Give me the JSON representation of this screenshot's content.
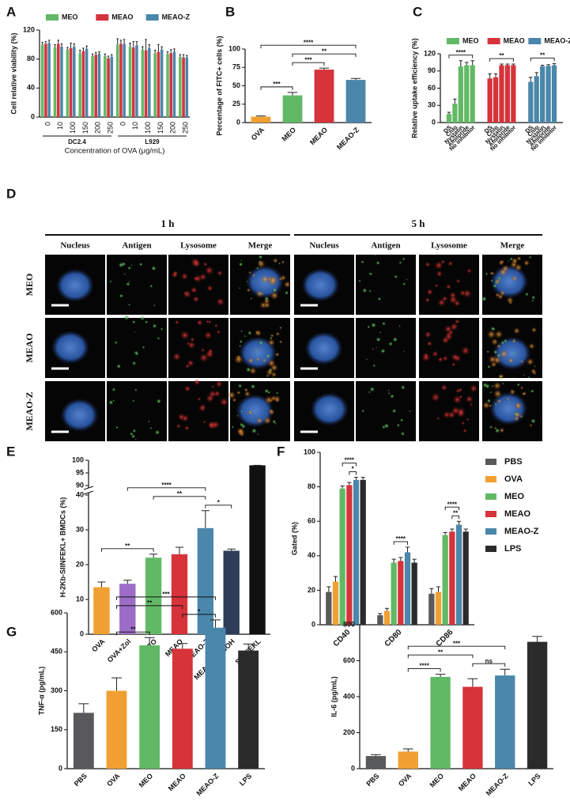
{
  "chart_data": [
    {
      "type": "grouped_bar",
      "panel": "A",
      "ylabel": "Cell relative viability (%)",
      "xlabel": "Concentration of OVA (μg/mL)",
      "categories": [
        "0",
        "10",
        "100",
        "150",
        "200",
        "250",
        "0",
        "10",
        "100",
        "150",
        "200",
        "250"
      ],
      "x_groups": [
        "DC2.4",
        "L929"
      ],
      "legend": "top",
      "ylim": [
        0,
        120
      ],
      "yticks": [
        0,
        40,
        80,
        120
      ],
      "series": [
        {
          "name": "MEO",
          "color": "#62b965",
          "values": [
            100,
            96,
            93,
            88,
            84,
            84,
            100,
            97,
            93,
            88,
            87,
            83
          ],
          "errors": [
            3,
            4,
            3,
            4,
            3,
            3,
            8,
            5,
            4,
            4,
            3,
            3
          ]
        },
        {
          "name": "MEAO",
          "color": "#d6333b",
          "values": [
            101,
            101,
            95,
            91,
            86,
            81,
            101,
            96,
            92,
            90,
            88,
            82
          ],
          "errors": [
            3,
            5,
            7,
            4,
            3,
            3,
            5,
            8,
            15,
            10,
            5,
            4
          ]
        },
        {
          "name": "MEAO-Z",
          "color": "#4a87aa",
          "values": [
            102,
            97,
            97,
            94,
            87,
            83,
            101,
            99,
            95,
            93,
            90,
            82
          ],
          "errors": [
            4,
            4,
            4,
            4,
            3,
            3,
            6,
            5,
            5,
            4,
            4,
            3
          ]
        }
      ]
    },
    {
      "type": "bar",
      "panel": "B",
      "ylabel": "Percentage of FITC+ cells (%)",
      "categories": [
        "OVA",
        "MEO",
        "MEAO",
        "MEAO-Z"
      ],
      "values": [
        8,
        37,
        72,
        58
      ],
      "errors": [
        1,
        4,
        2,
        2
      ],
      "colors": [
        "#f0a032",
        "#62b965",
        "#d6333b",
        "#4a87aa"
      ],
      "ylim": [
        0,
        100
      ],
      "yticks": [
        0,
        25,
        50,
        75,
        100
      ],
      "comparisons": [
        {
          "groups": [
            "OVA",
            "MEO"
          ],
          "label": "***"
        },
        {
          "groups": [
            "MEO",
            "MEAO"
          ],
          "label": "***"
        },
        {
          "groups": [
            "MEO",
            "MEAO-Z"
          ],
          "label": "**"
        },
        {
          "groups": [
            "OVA",
            "MEAO-Z"
          ],
          "label": "****"
        }
      ]
    },
    {
      "type": "grouped_bar",
      "panel": "C",
      "ylabel": "Relative uptake efficiency (%)",
      "cluster": "series",
      "legend": "top",
      "categories": [
        "DS",
        "Chlo",
        "Nystatin",
        "Amiloride",
        "No inhibitor"
      ],
      "ylim": [
        0,
        120
      ],
      "yticks": [
        0,
        30,
        60,
        90,
        120
      ],
      "series": [
        {
          "name": "MEO",
          "color": "#62b965",
          "values": [
            15,
            33,
            98,
            100,
            100
          ],
          "errors": [
            3,
            8,
            10,
            5,
            8
          ]
        },
        {
          "name": "MEAO",
          "color": "#d6333b",
          "values": [
            77,
            79,
            100,
            100,
            100
          ],
          "errors": [
            8,
            6,
            2,
            2,
            2
          ]
        },
        {
          "name": "MEAO-Z",
          "color": "#4a87aa",
          "values": [
            71,
            81,
            98,
            99,
            100
          ],
          "errors": [
            8,
            6,
            2,
            2,
            3
          ]
        }
      ],
      "comparisons": [
        {
          "series": "MEO",
          "groups": [
            "DS",
            "No inhibitor"
          ],
          "label": "****"
        },
        {
          "series": "MEAO",
          "groups": [
            "DS",
            "No inhibitor"
          ],
          "label": "**"
        },
        {
          "series": "MEAO-Z",
          "groups": [
            "DS",
            "No inhibitor"
          ],
          "label": "**"
        }
      ]
    },
    {
      "type": "bar",
      "panel": "E",
      "ylabel": "H-2Kb-SIINFEKL+ BMDCs (%)",
      "categories": [
        "OVA",
        "OVA+Zol",
        "MEO",
        "MEAO",
        "MEAO-Z",
        "MEAO-Z+GGOH",
        "SIINFEKL"
      ],
      "values": [
        13.5,
        14.5,
        22,
        23,
        30.5,
        24,
        98
      ],
      "errors": [
        1.5,
        1,
        1,
        2,
        5,
        0.5,
        0
      ],
      "colors": [
        "#f0a032",
        "#9b6dc6",
        "#62b965",
        "#d6333b",
        "#4a87aa",
        "#2e3e58",
        "#111111"
      ],
      "ylim": [
        0,
        100
      ],
      "ybreak": [
        40,
        90
      ],
      "yticks": [
        0,
        10,
        20,
        30,
        40,
        90,
        95,
        100
      ],
      "comparisons": [
        {
          "groups": [
            "OVA",
            "MEO"
          ],
          "label": "**"
        },
        {
          "groups": [
            "MEAO-Z",
            "MEAO-Z+GGOH"
          ],
          "label": "*"
        },
        {
          "groups": [
            "MEO",
            "MEAO-Z"
          ],
          "label": "**"
        },
        {
          "groups": [
            "OVA+Zol",
            "MEAO-Z"
          ],
          "label": "****"
        }
      ]
    },
    {
      "type": "grouped_bar",
      "panel": "F",
      "ylabel": "Gated (%)",
      "legend": "right",
      "categories": [
        "CD40",
        "CD80",
        "CD86"
      ],
      "ylim": [
        0,
        100
      ],
      "yticks": [
        0,
        20,
        40,
        60,
        80,
        100
      ],
      "series": [
        {
          "name": "PBS",
          "color": "#58595b",
          "values": [
            19,
            5.5,
            18
          ],
          "errors": [
            3,
            1,
            3
          ]
        },
        {
          "name": "OVA",
          "color": "#f0a032",
          "values": [
            25,
            8,
            19
          ],
          "errors": [
            3,
            1.5,
            3
          ]
        },
        {
          "name": "MEO",
          "color": "#62b965",
          "values": [
            79,
            36,
            52
          ],
          "errors": [
            1.5,
            2,
            1.5
          ]
        },
        {
          "name": "MEAO",
          "color": "#d6333b",
          "values": [
            81,
            37,
            54
          ],
          "errors": [
            1.5,
            2,
            1.5
          ]
        },
        {
          "name": "MEAO-Z",
          "color": "#4a87aa",
          "values": [
            84,
            42,
            58
          ],
          "errors": [
            1.5,
            3,
            2
          ]
        },
        {
          "name": "LPS",
          "color": "#2b2b2b",
          "values": [
            84,
            36,
            54
          ],
          "errors": [
            1.5,
            2,
            1.5
          ]
        }
      ],
      "comparisons": [
        {
          "category": "CD40",
          "groups": [
            "MEAO",
            "MEAO-Z"
          ],
          "label": "*"
        },
        {
          "category": "CD40",
          "groups": [
            "MEO",
            "MEAO-Z"
          ],
          "label": "****"
        },
        {
          "category": "CD80",
          "groups": [
            "MEO",
            "MEAO-Z"
          ],
          "label": "****"
        },
        {
          "category": "CD86",
          "groups": [
            "MEAO",
            "MEAO-Z"
          ],
          "label": "**"
        },
        {
          "category": "CD86",
          "groups": [
            "MEO",
            "MEAO-Z"
          ],
          "label": "****"
        }
      ]
    },
    {
      "type": "bar",
      "panel": "G",
      "ylabel": "TNF-α (pg/mL)",
      "categories": [
        "PBS",
        "OVA",
        "MEO",
        "MEAO",
        "MEAO-Z",
        "LPS"
      ],
      "values": [
        215,
        300,
        475,
        462,
        543,
        455
      ],
      "errors": [
        35,
        50,
        30,
        20,
        30,
        25
      ],
      "colors": [
        "#58595b",
        "#f0a032",
        "#62b965",
        "#d6333b",
        "#4a87aa",
        "#2b2b2b"
      ],
      "ylim": [
        0,
        600
      ],
      "yticks": [
        0,
        150,
        300,
        450,
        600
      ],
      "comparisons": [
        {
          "groups": [
            "OVA",
            "MEO"
          ],
          "label": "**"
        },
        {
          "groups": [
            "MEAO",
            "MEAO-Z"
          ],
          "label": "*"
        },
        {
          "groups": [
            "OVA",
            "MEAO"
          ],
          "label": "**"
        },
        {
          "groups": [
            "OVA",
            "MEAO-Z"
          ],
          "label": "***"
        }
      ]
    },
    {
      "type": "bar",
      "ylabel": "IL-6 (pg/mL)",
      "categories": [
        "PBS",
        "OVA",
        "MEO",
        "MEAO",
        "MEAO-Z",
        "LPS"
      ],
      "values": [
        70,
        95,
        510,
        455,
        518,
        705
      ],
      "errors": [
        8,
        15,
        15,
        45,
        35,
        30
      ],
      "colors": [
        "#58595b",
        "#f0a032",
        "#62b965",
        "#d6333b",
        "#4a87aa",
        "#2b2b2b"
      ],
      "ylim": [
        0,
        800
      ],
      "yticks": [
        0,
        200,
        400,
        600,
        800
      ],
      "comparisons": [
        {
          "groups": [
            "OVA",
            "MEO"
          ],
          "label": "****"
        },
        {
          "groups": [
            "MEAO",
            "MEAO-Z"
          ],
          "label": "ns"
        },
        {
          "groups": [
            "OVA",
            "MEAO"
          ],
          "label": "**"
        },
        {
          "groups": [
            "OVA",
            "MEAO-Z"
          ],
          "label": "***"
        }
      ]
    }
  ],
  "image_panel": {
    "panel": "D",
    "times": [
      "1 h",
      "5 h"
    ],
    "channels": [
      "Nucleus",
      "Antigen",
      "Lysosome",
      "Merge"
    ],
    "rows": [
      "MEO",
      "MEAO",
      "MEAO-Z"
    ]
  }
}
